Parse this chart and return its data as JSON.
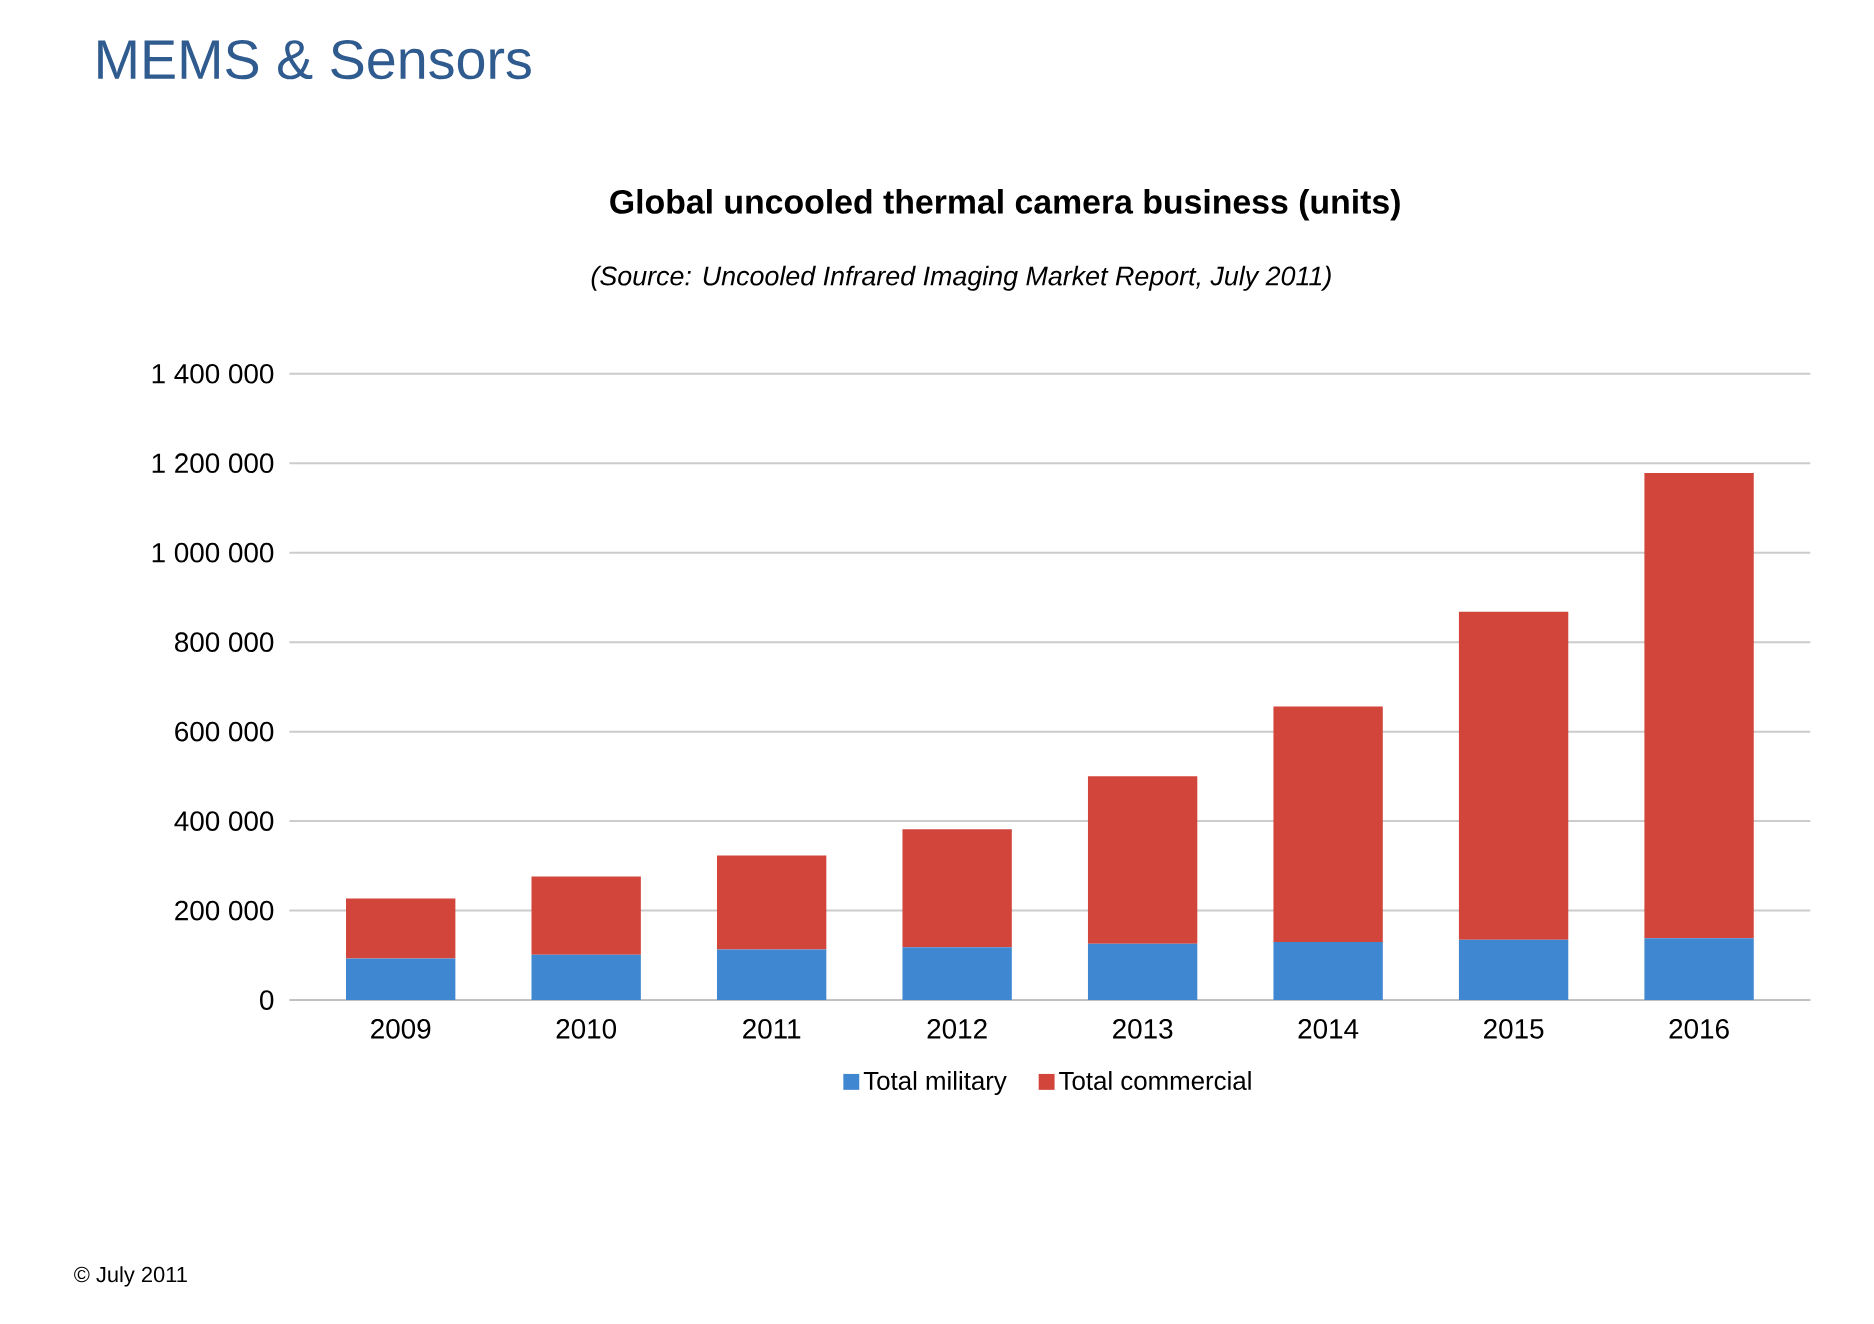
{
  "chart_data": {
    "type": "bar",
    "stacked": true,
    "title": "Global uncooled thermal camera business (units)",
    "subtitle": "(Source: Uncooled Infrared Imaging Market Report, July 2011)",
    "annotations": [
      "MEMS & Sensors",
      "© July 2011"
    ],
    "categories": [
      "2009",
      "2010",
      "2011",
      "2012",
      "2013",
      "2014",
      "2015",
      "2016"
    ],
    "series": [
      {
        "name": "Total military",
        "color": "#3f87d0",
        "values": [
          93000,
          101000,
          113000,
          118000,
          126000,
          130000,
          135000,
          138000
        ]
      },
      {
        "name": "Total commercial",
        "color": "#d2453a",
        "values": [
          134000,
          175000,
          210000,
          264000,
          374000,
          526000,
          733000,
          1040000
        ]
      }
    ],
    "ylim": [
      0,
      1400000
    ],
    "yticks": [
      {
        "value": 0,
        "label": "0"
      },
      {
        "value": 200000,
        "label": "200 000"
      },
      {
        "value": 400000,
        "label": "400 000"
      },
      {
        "value": 600000,
        "label": "600 000"
      },
      {
        "value": 800000,
        "label": "800 000"
      },
      {
        "value": 1000000,
        "label": "1 000 000"
      },
      {
        "value": 1200000,
        "label": "1 200 000"
      },
      {
        "value": 1400000,
        "label": "1 400 000"
      }
    ],
    "grid": "y",
    "legend": "bottom"
  }
}
